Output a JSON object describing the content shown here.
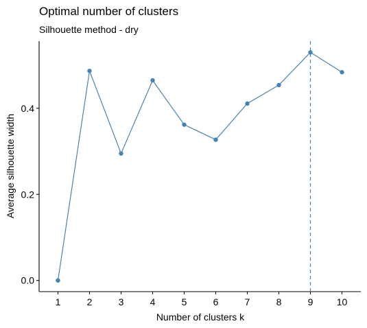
{
  "chart_data": {
    "type": "line",
    "title": "Optimal number of clusters",
    "subtitle": "Silhouette method - dry",
    "xlabel": "Number of clusters k",
    "ylabel": "Average silhouette width",
    "categories": [
      "1",
      "2",
      "3",
      "4",
      "5",
      "6",
      "7",
      "8",
      "9",
      "10"
    ],
    "series": [
      {
        "values": [
          0.0,
          0.487,
          0.295,
          0.465,
          0.362,
          0.327,
          0.411,
          0.454,
          0.53,
          0.484
        ]
      }
    ],
    "ylim": [
      -0.026,
      0.556
    ],
    "yticks": [
      0.0,
      0.2,
      0.4
    ],
    "ytick_labels": [
      "0.0",
      "0.2",
      "0.4"
    ],
    "optimal_k": "9",
    "grid": false,
    "legend": "none",
    "colors": {
      "line": "#4682b4",
      "point": "#4682b4",
      "vline": "#4682b4",
      "axis": "#000000",
      "text": "#000000"
    }
  }
}
